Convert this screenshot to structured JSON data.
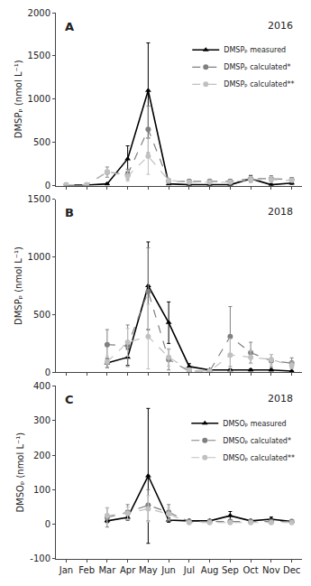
{
  "chart_data": [
    {
      "type": "line",
      "title": "2016",
      "annotations": [
        "A"
      ],
      "y_label": "DMSPₚ (nmol L⁻¹)",
      "categories": [
        "Jan",
        "Feb",
        "Mar",
        "Apr",
        "May",
        "Jun",
        "Jul",
        "Aug",
        "Sep",
        "Oct",
        "Nov",
        "Dec"
      ],
      "ylim": [
        0,
        2000
      ],
      "yticks": [
        0,
        500,
        1000,
        1500,
        2000
      ],
      "grid": false,
      "legend": "upper right",
      "tick_labels": "y",
      "series": [
        {
          "name": "DMSPₚ measured",
          "color": "#000000",
          "marker": "triangle-up",
          "line_style": "solid",
          "values": [
            5,
            5,
            20,
            310,
            1100,
            20,
            10,
            10,
            10,
            80,
            10,
            30
          ],
          "yerr": [
            2,
            2,
            10,
            150,
            550,
            10,
            5,
            5,
            5,
            35,
            8,
            15
          ]
        },
        {
          "name": "DMSPₚ calculated*",
          "color": "#808080",
          "marker": "circle",
          "line_style": "dash",
          "values": [
            10,
            10,
            155,
            130,
            650,
            50,
            50,
            50,
            50,
            80,
            80,
            70
          ],
          "yerr": [
            5,
            5,
            60,
            60,
            270,
            25,
            20,
            20,
            20,
            40,
            35,
            25
          ]
        },
        {
          "name": "DMSPₚ calculated**",
          "color": "#c0c0c0",
          "marker": "circle",
          "line_style": "dash",
          "values": [
            10,
            10,
            160,
            110,
            340,
            60,
            40,
            40,
            40,
            70,
            70,
            60
          ],
          "yerr": [
            5,
            5,
            60,
            60,
            210,
            25,
            15,
            15,
            15,
            35,
            35,
            18
          ]
        }
      ]
    },
    {
      "type": "line",
      "title": "2018",
      "annotations": [
        "B"
      ],
      "y_label": "DMSPₚ (nmol L⁻¹)",
      "categories": [
        "Jan",
        "Feb",
        "Mar",
        "Apr",
        "May",
        "Jun",
        "Jul",
        "Aug",
        "Sep",
        "Oct",
        "Nov",
        "Dec"
      ],
      "ylim": [
        0,
        1500
      ],
      "yticks": [
        0,
        500,
        1000,
        1500
      ],
      "grid": false,
      "tick_labels": "y",
      "series": [
        {
          "color": "#000000",
          "marker": "triangle-up",
          "line_style": "solid",
          "values": [
            null,
            null,
            80,
            130,
            750,
            430,
            50,
            20,
            20,
            20,
            20,
            10
          ],
          "yerr": [
            null,
            null,
            40,
            70,
            380,
            180,
            25,
            8,
            8,
            8,
            8,
            4
          ]
        },
        {
          "color": "#808080",
          "marker": "circle",
          "line_style": "dash",
          "values": [
            null,
            null,
            240,
            230,
            700,
            110,
            10,
            10,
            310,
            170,
            100,
            80
          ],
          "yerr": [
            null,
            null,
            130,
            180,
            380,
            90,
            8,
            8,
            260,
            90,
            55,
            45
          ]
        },
        {
          "color": "#c0c0c0",
          "marker": "circle",
          "line_style": "dash",
          "values": [
            null,
            null,
            90,
            260,
            310,
            130,
            20,
            10,
            150,
            130,
            110,
            60
          ],
          "yerr": [
            null,
            null,
            50,
            120,
            280,
            75,
            8,
            4,
            140,
            55,
            45,
            28
          ]
        }
      ]
    },
    {
      "type": "line",
      "title": "2018",
      "annotations": [
        "C"
      ],
      "y_label": "DMSOₚ (nmol L⁻¹)",
      "categories": [
        "Jan",
        "Feb",
        "Mar",
        "Apr",
        "May",
        "Jun",
        "Jul",
        "Aug",
        "Sep",
        "Oct",
        "Nov",
        "Dec"
      ],
      "ylim": [
        -100,
        400
      ],
      "yticks": [
        -100,
        0,
        100,
        200,
        300,
        400
      ],
      "grid": false,
      "legend": "upper right",
      "series": [
        {
          "name": "DMSOₚ measured",
          "color": "#000000",
          "marker": "triangle-up",
          "line_style": "solid",
          "values": [
            null,
            null,
            10,
            20,
            140,
            12,
            10,
            10,
            25,
            10,
            15,
            8
          ],
          "yerr": [
            null,
            null,
            4,
            8,
            195,
            6,
            4,
            4,
            12,
            4,
            6,
            3
          ]
        },
        {
          "name": "DMSOₚ calculated*",
          "color": "#808080",
          "marker": "circle",
          "line_style": "dash",
          "values": [
            null,
            null,
            20,
            35,
            55,
            35,
            8,
            8,
            8,
            8,
            8,
            8
          ],
          "yerr": [
            null,
            null,
            28,
            22,
            45,
            22,
            4,
            4,
            4,
            4,
            4,
            4
          ]
        },
        {
          "name": "DMSOₚ calculated**",
          "color": "#c0c0c0",
          "marker": "circle",
          "line_style": "dash",
          "values": [
            null,
            null,
            25,
            32,
            45,
            30,
            5,
            5,
            5,
            5,
            5,
            5
          ],
          "yerr": [
            null,
            null,
            22,
            18,
            38,
            18,
            3,
            3,
            3,
            3,
            3,
            3
          ]
        }
      ]
    }
  ]
}
